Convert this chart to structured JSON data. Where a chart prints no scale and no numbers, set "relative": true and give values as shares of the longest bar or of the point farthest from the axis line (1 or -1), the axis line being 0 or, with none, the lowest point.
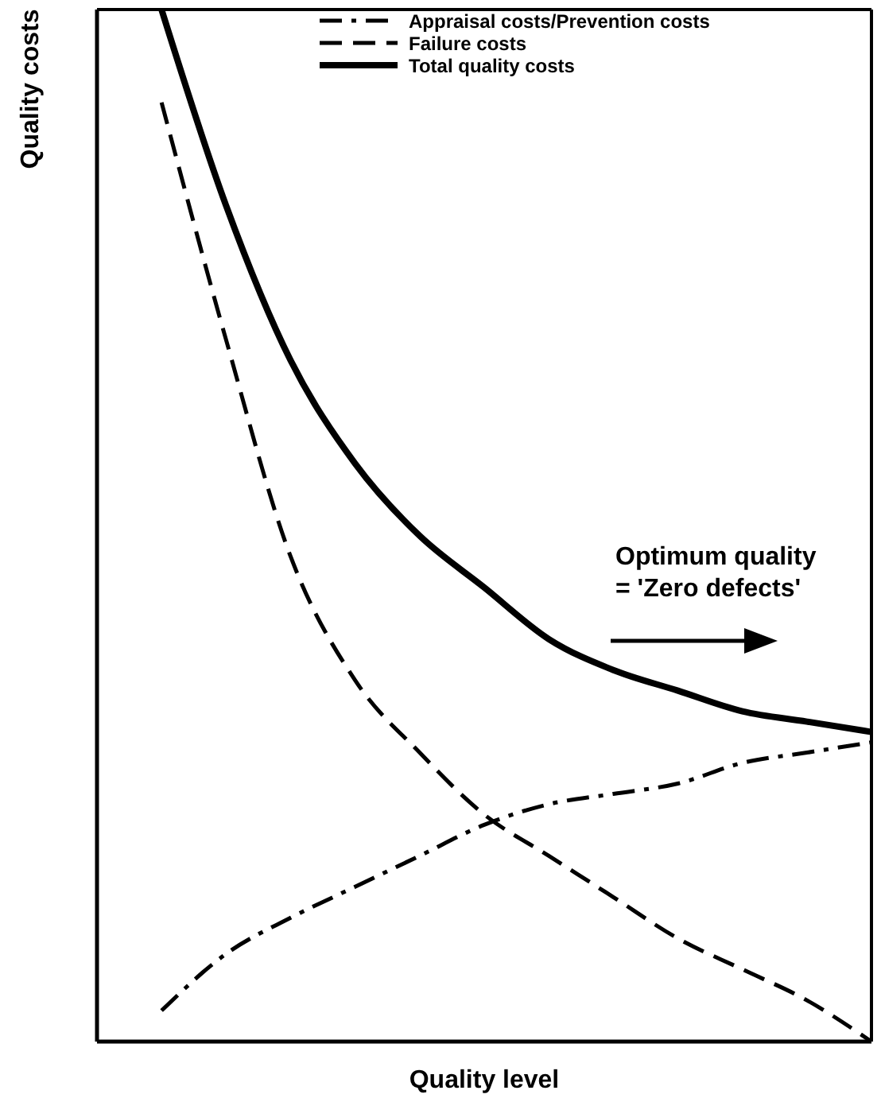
{
  "chart_data": {
    "type": "line",
    "relative": true,
    "xlabel": "Quality level",
    "ylabel": "Quality costs",
    "categories": [
      null,
      null,
      null,
      null,
      null,
      null,
      null,
      null,
      null,
      null,
      null,
      null,
      null
    ],
    "series": [
      {
        "name": "Appraisal costs/Prevention costs",
        "color": "#000000",
        "line_style": "dashdot",
        "values": [
          null,
          0.03,
          0.085,
          0.12,
          0.15,
          0.18,
          0.21,
          0.23,
          0.24,
          0.25,
          0.27,
          0.28,
          0.29
        ]
      },
      {
        "name": "Failure costs",
        "color": "#000000",
        "line_style": "dashed",
        "values": [
          null,
          0.91,
          0.68,
          0.47,
          0.35,
          0.28,
          0.22,
          0.18,
          0.14,
          0.1,
          0.07,
          0.04,
          0.0
        ]
      },
      {
        "name": "Total quality costs",
        "color": "#000000",
        "line_style": "solid",
        "values": [
          null,
          1.0,
          0.81,
          0.66,
          0.56,
          0.49,
          0.44,
          0.39,
          0.36,
          0.34,
          0.32,
          0.31,
          0.3
        ]
      }
    ],
    "legend": "top right",
    "grid": false,
    "annotations": [
      "Optimum quality\n= 'Zero defects'"
    ]
  }
}
